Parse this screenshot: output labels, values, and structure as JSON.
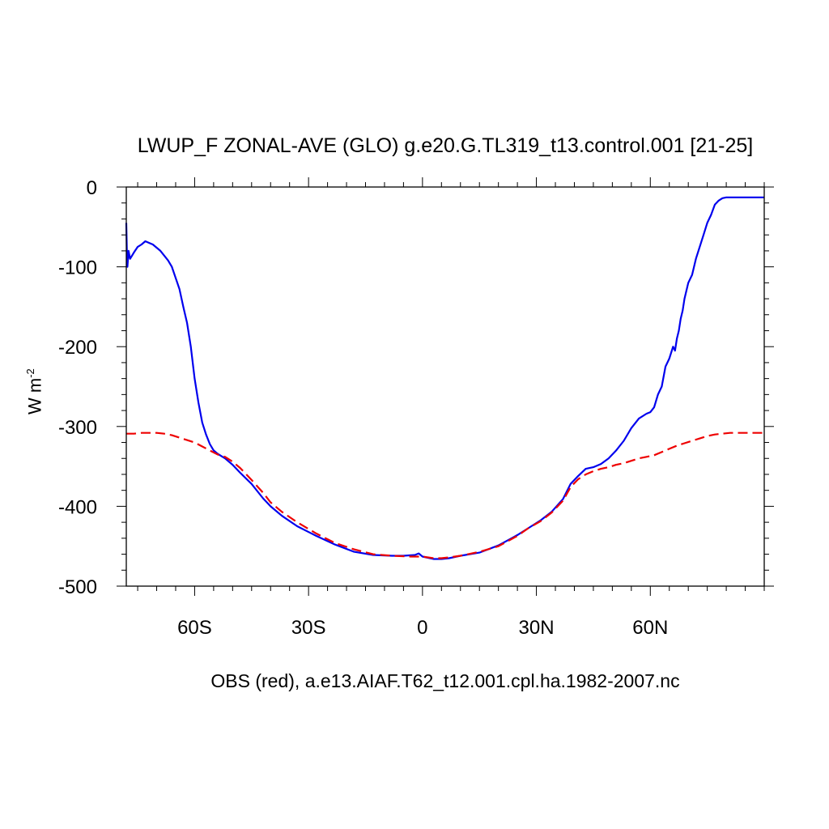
{
  "chart_data": {
    "type": "line",
    "title": "LWUP_F ZONAL-AVE (GLO) g.e20.G.TL319_t13.control.001 [21-25]",
    "subtitle": "OBS (red), a.e13.AIAF.T62_t12.001.cpl.ha.1982-2007.nc",
    "ylabel": "W m",
    "ylabel_superscript": "-2",
    "xlim": [
      -78,
      90
    ],
    "ylim": [
      -500,
      0
    ],
    "y_ticks": [
      0,
      -100,
      -200,
      -300,
      -400,
      -500
    ],
    "y_tick_labels": [
      "0",
      "-100",
      "-200",
      "-300",
      "-400",
      "-500"
    ],
    "x_ticks": [
      -60,
      -30,
      0,
      30,
      60
    ],
    "x_tick_labels": [
      "60S",
      "30S",
      "0",
      "30N",
      "60N"
    ],
    "colors": {
      "model": "#0000ee",
      "obs": "#ee0000"
    },
    "series": [
      {
        "name": "model",
        "style": "solid",
        "x": [
          -78,
          -77.8,
          -77.7,
          -77.4,
          -77,
          -76,
          -75,
          -74,
          -73,
          -72,
          -71,
          -69,
          -67,
          -66,
          -64,
          -63,
          -62,
          -61,
          -60,
          -59,
          -58,
          -57,
          -56,
          -55,
          -54,
          -53,
          -52,
          -50,
          -48,
          -45,
          -42,
          -40,
          -37,
          -33,
          -28,
          -23,
          -18,
          -13,
          -8,
          -5,
          -2,
          -1,
          0,
          1,
          3,
          5,
          7,
          10,
          15,
          20,
          25,
          28,
          31,
          34,
          37,
          39,
          41,
          43,
          45,
          47,
          49,
          51,
          53,
          55,
          57,
          59,
          60,
          61,
          62,
          63,
          64,
          65,
          66,
          66.5,
          67,
          67.5,
          68,
          68.5,
          69,
          70,
          71,
          72,
          73,
          74,
          75,
          76,
          77,
          78,
          79,
          80,
          81,
          82,
          83,
          84,
          86,
          88,
          90
        ],
        "y": [
          -45,
          -90,
          -100,
          -80,
          -90,
          -82,
          -75,
          -72,
          -68,
          -70,
          -72,
          -80,
          -92,
          -100,
          -128,
          -150,
          -170,
          -200,
          -240,
          -270,
          -295,
          -310,
          -322,
          -330,
          -334,
          -337,
          -340,
          -348,
          -358,
          -372,
          -390,
          -400,
          -412,
          -425,
          -437,
          -448,
          -457,
          -461,
          -462,
          -462,
          -461,
          -459,
          -463,
          -464,
          -466,
          -466,
          -465,
          -462,
          -458,
          -449,
          -436,
          -427,
          -418,
          -407,
          -391,
          -372,
          -362,
          -353,
          -351,
          -347,
          -340,
          -330,
          -318,
          -302,
          -290,
          -284,
          -282,
          -276,
          -260,
          -250,
          -225,
          -215,
          -200,
          -205,
          -190,
          -180,
          -165,
          -155,
          -140,
          -120,
          -110,
          -90,
          -75,
          -60,
          -45,
          -35,
          -22,
          -17,
          -14,
          -13,
          -13,
          -13,
          -13,
          -13,
          -13,
          -13,
          -13
        ]
      },
      {
        "name": "obs",
        "style": "dashed",
        "x": [
          -78,
          -76,
          -74,
          -72,
          -70,
          -68,
          -66,
          -64,
          -62,
          -60,
          -58,
          -56,
          -54,
          -52,
          -50,
          -48,
          -45,
          -42,
          -40,
          -37,
          -33,
          -28,
          -23,
          -18,
          -13,
          -8,
          -3,
          0,
          3,
          5,
          7,
          10,
          15,
          20,
          25,
          28,
          31,
          34,
          37,
          39,
          41,
          43,
          45,
          47,
          49,
          51,
          53,
          55,
          57,
          59,
          61,
          63,
          65,
          67,
          69,
          71,
          73,
          75,
          77,
          79,
          81,
          83,
          85,
          87,
          90
        ],
        "y": [
          -309,
          -309,
          -308,
          -308,
          -308,
          -309,
          -311,
          -314,
          -317,
          -320,
          -325,
          -330,
          -335,
          -338,
          -344,
          -352,
          -367,
          -383,
          -395,
          -407,
          -420,
          -434,
          -446,
          -454,
          -460,
          -462,
          -463,
          -463,
          -465,
          -465,
          -464,
          -462,
          -457,
          -450,
          -437,
          -427,
          -419,
          -408,
          -393,
          -376,
          -366,
          -360,
          -356,
          -353,
          -351,
          -348,
          -346,
          -343,
          -340,
          -338,
          -336,
          -332,
          -328,
          -324,
          -321,
          -318,
          -315,
          -312,
          -310,
          -309,
          -308,
          -308,
          -308,
          -308,
          -308
        ]
      }
    ]
  }
}
